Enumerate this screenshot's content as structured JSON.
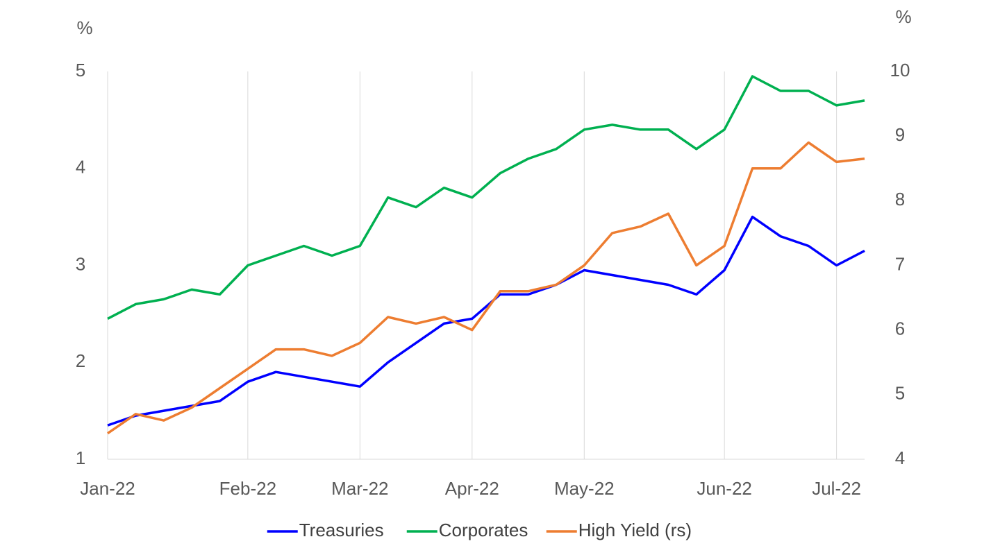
{
  "chart_data": {
    "type": "line",
    "x": [
      "Jan-22",
      "Jan-22",
      "Jan-22",
      "Jan-22",
      "Jan-22",
      "Feb-22",
      "Feb-22",
      "Feb-22",
      "Feb-22",
      "Mar-22",
      "Mar-22",
      "Mar-22",
      "Mar-22",
      "Apr-22",
      "Apr-22",
      "Apr-22",
      "Apr-22",
      "May-22",
      "May-22",
      "May-22",
      "May-22",
      "May-22",
      "Jun-22",
      "Jun-22",
      "Jun-22",
      "Jun-22",
      "Jul-22",
      "Jul-22"
    ],
    "y_label": "%",
    "y2_label": "%",
    "ylim": [
      1,
      5
    ],
    "yticks": [
      1,
      2,
      3,
      4,
      5
    ],
    "y2lim": [
      4,
      10
    ],
    "y2ticks": [
      4,
      5,
      6,
      7,
      8,
      9,
      10
    ],
    "grid": true,
    "series": [
      {
        "name": "Treasuries",
        "color": "#0000ff",
        "values": [
          1.35,
          1.45,
          1.5,
          1.55,
          1.6,
          1.8,
          1.9,
          1.85,
          1.8,
          1.75,
          2.0,
          2.2,
          2.4,
          2.45,
          2.7,
          2.7,
          2.8,
          2.95,
          2.9,
          2.85,
          2.8,
          2.7,
          2.95,
          3.5,
          3.3,
          3.2,
          3.0,
          3.15
        ]
      },
      {
        "name": "Corporates",
        "color": "#00b050",
        "values": [
          2.45,
          2.6,
          2.65,
          2.75,
          2.7,
          3.0,
          3.1,
          3.2,
          3.1,
          3.2,
          3.7,
          3.6,
          3.8,
          3.7,
          3.95,
          4.1,
          4.2,
          4.4,
          4.45,
          4.4,
          4.4,
          4.2,
          4.4,
          4.95,
          4.8,
          4.8,
          4.65,
          4.7
        ]
      },
      {
        "name": "High Yield (rs)",
        "color": "#ed7d31",
        "axis": "y2",
        "values": [
          4.4,
          4.7,
          4.6,
          4.8,
          5.1,
          5.4,
          5.7,
          5.7,
          5.6,
          5.8,
          6.2,
          6.1,
          6.2,
          6.0,
          6.6,
          6.6,
          6.7,
          7.0,
          7.5,
          7.6,
          7.8,
          7.0,
          7.3,
          8.5,
          8.5,
          8.9,
          8.6,
          8.65
        ]
      }
    ]
  }
}
